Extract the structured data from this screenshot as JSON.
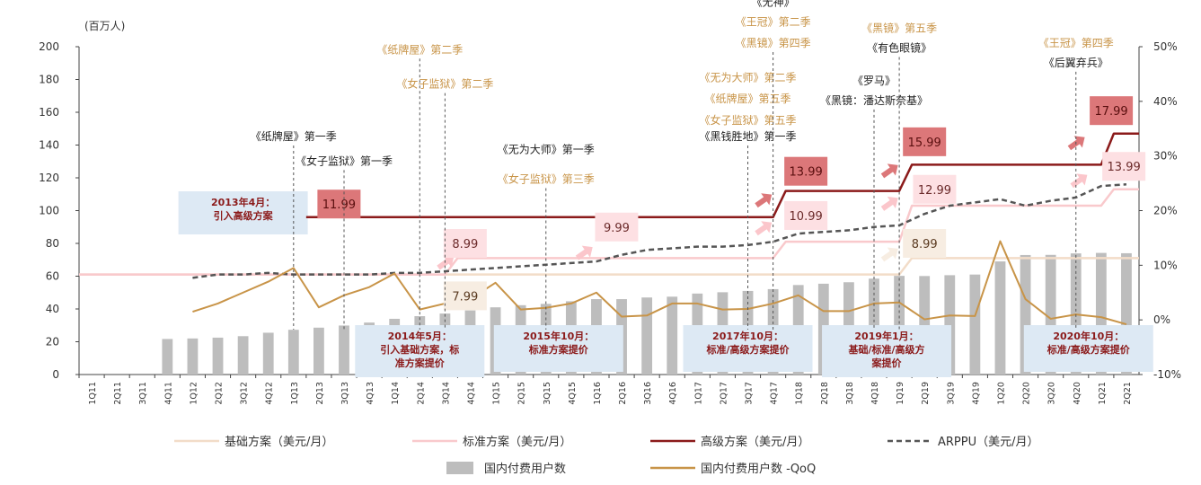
{
  "colors": {
    "basic": "#f2dcc8",
    "standard": "#f9c9cc",
    "premium": "#8b1a1a",
    "arppu": "#555555",
    "users": "#bdbdbd",
    "qoq": "#c89448",
    "anno_gold": "#c89448",
    "anno_dark": "#222222",
    "box_fill": "#dde9f4",
    "box_text": "#8b1a1a",
    "price_dark_fill": "#dc7779",
    "price_light_fill": "#fde0e3",
    "price_basic_fill": "#f7ede2",
    "arrow_dark": "#dc7779",
    "arrow_light": "#fbc6cb"
  },
  "chart_data": {
    "type": "bar",
    "y_unit_label": "(百万人)",
    "ylim": [
      0,
      200
    ],
    "y_ticks": [
      "0",
      "20",
      "40",
      "60",
      "80",
      "100",
      "120",
      "140",
      "160",
      "180",
      "200"
    ],
    "y2lim": [
      -10,
      50
    ],
    "y2_ticks": [
      "-10%",
      "0%",
      "10%",
      "20%",
      "30%",
      "40%",
      "50%"
    ],
    "categories": [
      "1Q11",
      "2Q11",
      "3Q11",
      "4Q11",
      "1Q12",
      "2Q12",
      "3Q12",
      "4Q12",
      "1Q13",
      "2Q13",
      "3Q13",
      "4Q13",
      "1Q14",
      "2Q14",
      "3Q14",
      "4Q14",
      "1Q15",
      "2Q15",
      "3Q15",
      "4Q15",
      "1Q16",
      "2Q16",
      "3Q16",
      "4Q16",
      "1Q17",
      "2Q17",
      "3Q17",
      "4Q17",
      "1Q18",
      "2Q18",
      "3Q18",
      "4Q18",
      "1Q19",
      "2Q19",
      "3Q19",
      "4Q19",
      "1Q20",
      "2Q20",
      "3Q20",
      "4Q20",
      "1Q21",
      "2Q21"
    ],
    "series": [
      {
        "name": "国内付费用户数",
        "type": "bar",
        "axis": "left",
        "values": [
          null,
          null,
          null,
          21.7,
          22.0,
          22.5,
          23.4,
          25.5,
          27.3,
          28.6,
          29.9,
          31.7,
          34.0,
          35.6,
          37.2,
          39.1,
          41.0,
          42.3,
          43.1,
          44.7,
          46.0,
          46.0,
          47.0,
          47.5,
          49.4,
          50.2,
          51.0,
          52.1,
          54.6,
          55.4,
          56.3,
          58.5,
          60.2,
          60.1,
          60.6,
          61.0,
          69.0,
          72.9,
          73.0,
          73.9,
          74.2,
          74.0
        ]
      },
      {
        "name": "基础方案（美元/月）",
        "type": "line",
        "axis": "left",
        "values": [
          61,
          61,
          61,
          61,
          61,
          61,
          61,
          61,
          61,
          61,
          61,
          61,
          61,
          61,
          61,
          61,
          61,
          61,
          61,
          61,
          61,
          61,
          61,
          61,
          61,
          61,
          61,
          61,
          61,
          61,
          61,
          61,
          71,
          71,
          71,
          71,
          71,
          71,
          71,
          71,
          71,
          71
        ]
      },
      {
        "name": "标准方案（美元/月）",
        "type": "line",
        "axis": "left",
        "values": [
          61,
          61,
          61,
          61,
          61,
          61,
          61,
          61,
          61,
          61,
          61,
          61,
          61,
          61,
          71,
          71,
          71,
          71,
          71,
          71,
          71,
          71,
          71,
          71,
          71,
          71,
          71,
          81,
          81,
          81,
          81,
          81,
          103,
          103,
          103,
          103,
          103,
          103,
          103,
          103,
          113,
          113
        ]
      },
      {
        "name": "高级方案（美元/月）",
        "type": "line",
        "axis": "left",
        "values": [
          null,
          null,
          null,
          null,
          null,
          null,
          null,
          null,
          null,
          96,
          96,
          96,
          96,
          96,
          96,
          96,
          96,
          96,
          96,
          96,
          96,
          96,
          96,
          96,
          96,
          96,
          96,
          112,
          112,
          112,
          112,
          112,
          128,
          128,
          128,
          128,
          128,
          128,
          128,
          128,
          147,
          147
        ]
      },
      {
        "name": "ARPPU（美元/月）",
        "type": "line",
        "axis": "left",
        "values": [
          null,
          null,
          null,
          null,
          59,
          61,
          61,
          62,
          61,
          61,
          61,
          61,
          62,
          62,
          63,
          64,
          65,
          66,
          67,
          68,
          69,
          73,
          76,
          77,
          78,
          78,
          79,
          81,
          86,
          87,
          88,
          90,
          91,
          98,
          103,
          105,
          107,
          103,
          106,
          108,
          115,
          116
        ]
      },
      {
        "name": "国内付费用户数 -QoQ",
        "type": "line",
        "axis": "right",
        "values": [
          null,
          null,
          null,
          null,
          1.5,
          3.0,
          5.0,
          7.0,
          9.5,
          2.3,
          4.5,
          6.0,
          8.5,
          1.9,
          3.0,
          3.8,
          6.8,
          1.9,
          2.2,
          3.0,
          5.0,
          0.6,
          0.8,
          3.0,
          3.0,
          1.9,
          2.0,
          3.0,
          4.5,
          1.6,
          1.6,
          3.0,
          3.2,
          0.1,
          0.8,
          0.7,
          14.4,
          3.8,
          0.2,
          1.0,
          0.5,
          -0.8
        ]
      }
    ],
    "annotations": [
      {
        "text": "《纸牌屋》第一季",
        "index": 8,
        "y": 143,
        "color": "dark"
      },
      {
        "text": "《女子监狱》第一季",
        "index": 10,
        "y": 128,
        "color": "dark"
      },
      {
        "text": "《纸牌屋》第二季",
        "index": 13,
        "y": 196,
        "color": "gold"
      },
      {
        "text": "《女子监狱》第二季",
        "index": 14,
        "y": 175,
        "color": "gold"
      },
      {
        "text": "《无为大师》第一季",
        "index": 18,
        "y": 135,
        "color": "dark"
      },
      {
        "text": "《女子监狱》第三季",
        "index": 18,
        "y": 117,
        "color": "gold"
      },
      {
        "text": "《无为大师》第二季",
        "index": 26,
        "y": 179,
        "color": "gold"
      },
      {
        "text": "《纸牌屋》第五季",
        "index": 26,
        "y": 166,
        "color": "gold"
      },
      {
        "text": "《女子监狱》第五季",
        "index": 26,
        "y": 153,
        "color": "gold"
      },
      {
        "text": "《黑钱胜地》第一季",
        "index": 26,
        "y": 143,
        "color": "dark"
      },
      {
        "text": "《无神》",
        "index": 27,
        "y": 225,
        "color": "dark"
      },
      {
        "text": "《王冠》第二季",
        "index": 27,
        "y": 213,
        "color": "gold"
      },
      {
        "text": "《黑镜》第四季",
        "index": 27,
        "y": 200,
        "color": "gold"
      },
      {
        "text": "《罗马》",
        "index": 31,
        "y": 177,
        "color": "dark"
      },
      {
        "text": "《黑镜：潘达斯奈基》",
        "index": 31,
        "y": 165,
        "color": "dark"
      },
      {
        "text": "《黑镜》第五季",
        "index": 32,
        "y": 209,
        "color": "gold"
      },
      {
        "text": "《有色眼镜》",
        "index": 32,
        "y": 197,
        "color": "dark"
      },
      {
        "text": "《王冠》第四季",
        "index": 39,
        "y": 200,
        "color": "gold"
      },
      {
        "text": "《后翼弃兵》",
        "index": 39,
        "y": 188,
        "color": "dark"
      }
    ],
    "event_boxes": [
      {
        "lines": [
          "2013年4月：",
          "引入高级方案"
        ],
        "index": 6.0
      },
      {
        "lines": [
          "2014年5月：",
          "引入基础方案，标",
          "准方案提价"
        ],
        "index": 13.0
      },
      {
        "lines": [
          "2015年10月：",
          "标准方案提价"
        ],
        "index": 18.5
      },
      {
        "lines": [
          "2017年10月：",
          "标准/高级方案提价"
        ],
        "index": 26.0
      },
      {
        "lines": [
          "2019年1月：",
          "基础/标准/高级方",
          "案提价"
        ],
        "index": 31.5
      },
      {
        "lines": [
          "2020年10月：",
          "标准/高级方案提价"
        ],
        "index": 39.5
      }
    ],
    "price_labels": [
      {
        "text": "11.99",
        "index": 9.8,
        "y": 104,
        "style": "dark"
      },
      {
        "text": "8.99",
        "index": 14.8,
        "y": 80,
        "style": "light"
      },
      {
        "text": "7.99",
        "index": 14.8,
        "y": 48,
        "style": "basic"
      },
      {
        "text": "9.99",
        "index": 20.8,
        "y": 90,
        "style": "light"
      },
      {
        "text": "13.99",
        "index": 28.3,
        "y": 124,
        "style": "dark"
      },
      {
        "text": "10.99",
        "index": 28.3,
        "y": 97,
        "style": "light"
      },
      {
        "text": "15.99",
        "index": 33.0,
        "y": 142,
        "style": "dark"
      },
      {
        "text": "12.99",
        "index": 33.4,
        "y": 113,
        "style": "light"
      },
      {
        "text": "8.99",
        "index": 33.0,
        "y": 80,
        "style": "basic"
      },
      {
        "text": "17.99",
        "index": 40.4,
        "y": 161,
        "style": "dark"
      },
      {
        "text": "13.99",
        "index": 40.9,
        "y": 127,
        "style": "light"
      }
    ],
    "price_arrows": [
      {
        "index": 14.0,
        "y": 68,
        "style": "light"
      },
      {
        "index": 19.5,
        "y": 74,
        "style": "light"
      },
      {
        "index": 26.6,
        "y": 106,
        "style": "dark"
      },
      {
        "index": 26.6,
        "y": 89,
        "style": "light"
      },
      {
        "index": 31.6,
        "y": 124,
        "style": "dark"
      },
      {
        "index": 31.6,
        "y": 104,
        "style": "light"
      },
      {
        "index": 31.6,
        "y": 73,
        "style": "basic"
      },
      {
        "index": 39.0,
        "y": 141,
        "style": "dark"
      },
      {
        "index": 39.1,
        "y": 118,
        "style": "light"
      }
    ]
  }
}
